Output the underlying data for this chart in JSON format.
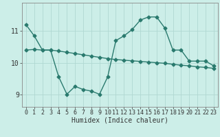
{
  "line1_x": [
    0,
    1,
    2,
    3,
    4,
    5,
    6,
    7,
    8,
    9,
    10,
    11,
    12,
    13,
    14,
    15,
    16,
    17,
    18,
    19,
    20,
    21,
    22,
    23
  ],
  "line1_y": [
    11.2,
    10.85,
    10.4,
    10.4,
    9.55,
    9.0,
    9.25,
    9.15,
    9.1,
    9.0,
    9.55,
    10.7,
    10.85,
    11.05,
    11.35,
    11.45,
    11.45,
    11.1,
    10.4,
    10.4,
    10.05,
    10.05,
    10.05,
    9.9
  ],
  "line2_x": [
    0,
    1,
    2,
    3,
    4,
    5,
    6,
    7,
    8,
    9,
    10,
    11,
    12,
    13,
    14,
    15,
    16,
    17,
    18,
    19,
    20,
    21,
    22,
    23
  ],
  "line2_y": [
    10.4,
    10.42,
    10.4,
    10.4,
    10.37,
    10.33,
    10.29,
    10.25,
    10.21,
    10.17,
    10.13,
    10.1,
    10.08,
    10.06,
    10.04,
    10.02,
    10.0,
    9.98,
    9.95,
    9.92,
    9.9,
    9.87,
    9.85,
    9.82
  ],
  "line_color": "#2a7a6e",
  "bg_color": "#cceee8",
  "grid_color": "#b0d8d2",
  "xlabel": "Humidex (Indice chaleur)",
  "ylim": [
    8.6,
    11.9
  ],
  "xlim": [
    -0.5,
    23.5
  ],
  "yticks": [
    9,
    10,
    11
  ],
  "xticks": [
    0,
    1,
    2,
    3,
    4,
    5,
    6,
    7,
    8,
    9,
    10,
    11,
    12,
    13,
    14,
    15,
    16,
    17,
    18,
    19,
    20,
    21,
    22,
    23
  ],
  "marker": "D",
  "markersize": 2.5,
  "linewidth": 1.0,
  "xlabel_fontsize": 7,
  "tick_fontsize": 6,
  "ytick_fontsize": 7
}
